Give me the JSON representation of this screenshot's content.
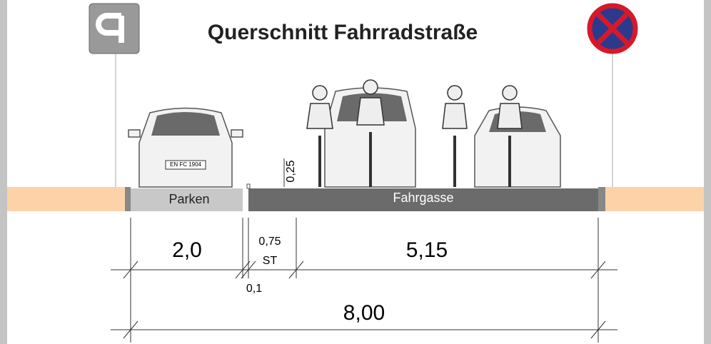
{
  "title": "Querschnitt Fahrradstraße",
  "lanes": {
    "parking": "Parken",
    "driving": "Fahrgasse"
  },
  "plate": "EN FC 1904",
  "dimensions": {
    "parking": "2,0",
    "gap": "0,1",
    "safety": "0,75",
    "safety_label": "ST",
    "driving": "5,15",
    "total": "8,00",
    "height": "0,25"
  }
}
